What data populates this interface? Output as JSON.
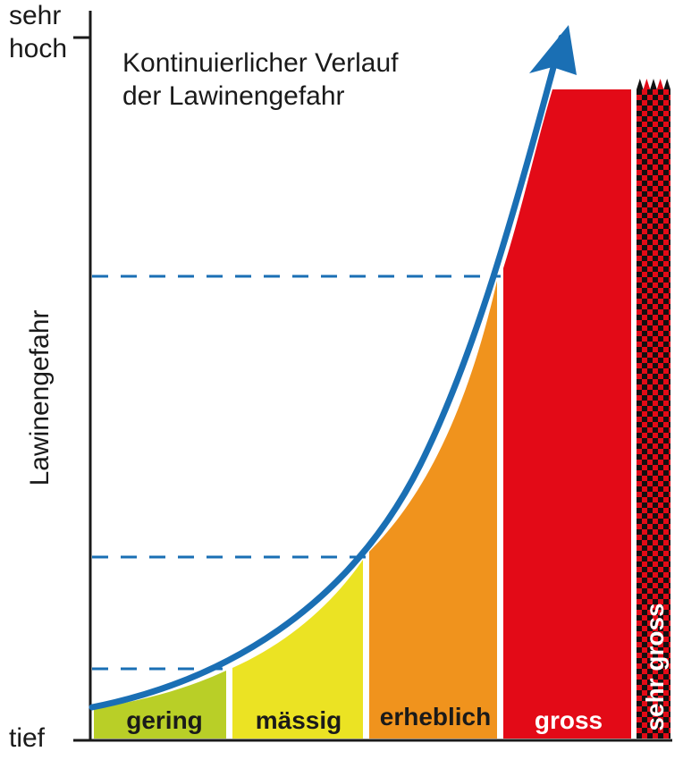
{
  "chart_data": {
    "type": "area",
    "title_lines": [
      "Kontinuierlicher Verlauf",
      "der Lawinengefahr"
    ],
    "ylabel": "Lawinengefahr",
    "y_top_label": [
      "sehr",
      "hoch"
    ],
    "y_bottom_label": "tief",
    "categories": [
      "gering",
      "mässig",
      "erheblich",
      "gross",
      "sehr gross"
    ],
    "category_colors": [
      "#b9cf27",
      "#ebe323",
      "#f0931d",
      "#e30a17",
      "#e30a17"
    ],
    "category_label_colors": [
      "#1a1a1a",
      "#1a1a1a",
      "#1a1a1a",
      "#ffffff",
      "#ffffff"
    ],
    "very_high_pattern": "red-black-checkerboard",
    "curve_color": "#1a6fb4",
    "threshold_line_color": "#1a6fb4",
    "arrow_style": "arrow-up-right"
  }
}
